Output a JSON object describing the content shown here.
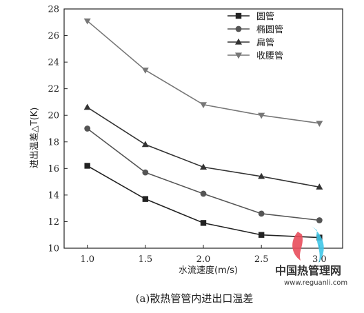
{
  "chart_data": {
    "type": "line",
    "x": [
      1.0,
      1.5,
      2.0,
      2.5,
      3.0
    ],
    "x_tick_labels": [
      "1.0",
      "1.5",
      "2.0",
      "2.5",
      "3.0"
    ],
    "y_tick_labels": [
      "10",
      "12",
      "14",
      "16",
      "18",
      "20",
      "22",
      "24",
      "26",
      "28"
    ],
    "xlim": [
      0.8,
      3.2
    ],
    "ylim": [
      10,
      28
    ],
    "xlabel": "水流速度(m/s)",
    "ylabel": "进出温差△T(K)",
    "caption": "(a)散热管管内进出口温差",
    "legend_position": "top-right",
    "grid": false,
    "series": [
      {
        "name": "圆管",
        "marker": "square",
        "values": [
          16.2,
          13.7,
          11.9,
          11.0,
          10.8
        ]
      },
      {
        "name": "椭圆管",
        "marker": "circle",
        "values": [
          19.0,
          15.7,
          14.1,
          12.6,
          12.1
        ]
      },
      {
        "name": "扁管",
        "marker": "triangle-up",
        "values": [
          20.6,
          17.8,
          16.1,
          15.4,
          14.6
        ]
      },
      {
        "name": "收腰管",
        "marker": "triangle-down",
        "values": [
          27.1,
          23.4,
          20.8,
          20.0,
          19.4
        ]
      }
    ],
    "line_colors": [
      "#222222",
      "#555555",
      "#333333",
      "#777777"
    ]
  },
  "watermark": {
    "title": "中国热管理网",
    "url": "www.reguanli.com",
    "colors": [
      "#e84d5b",
      "#3fc6e8"
    ]
  }
}
